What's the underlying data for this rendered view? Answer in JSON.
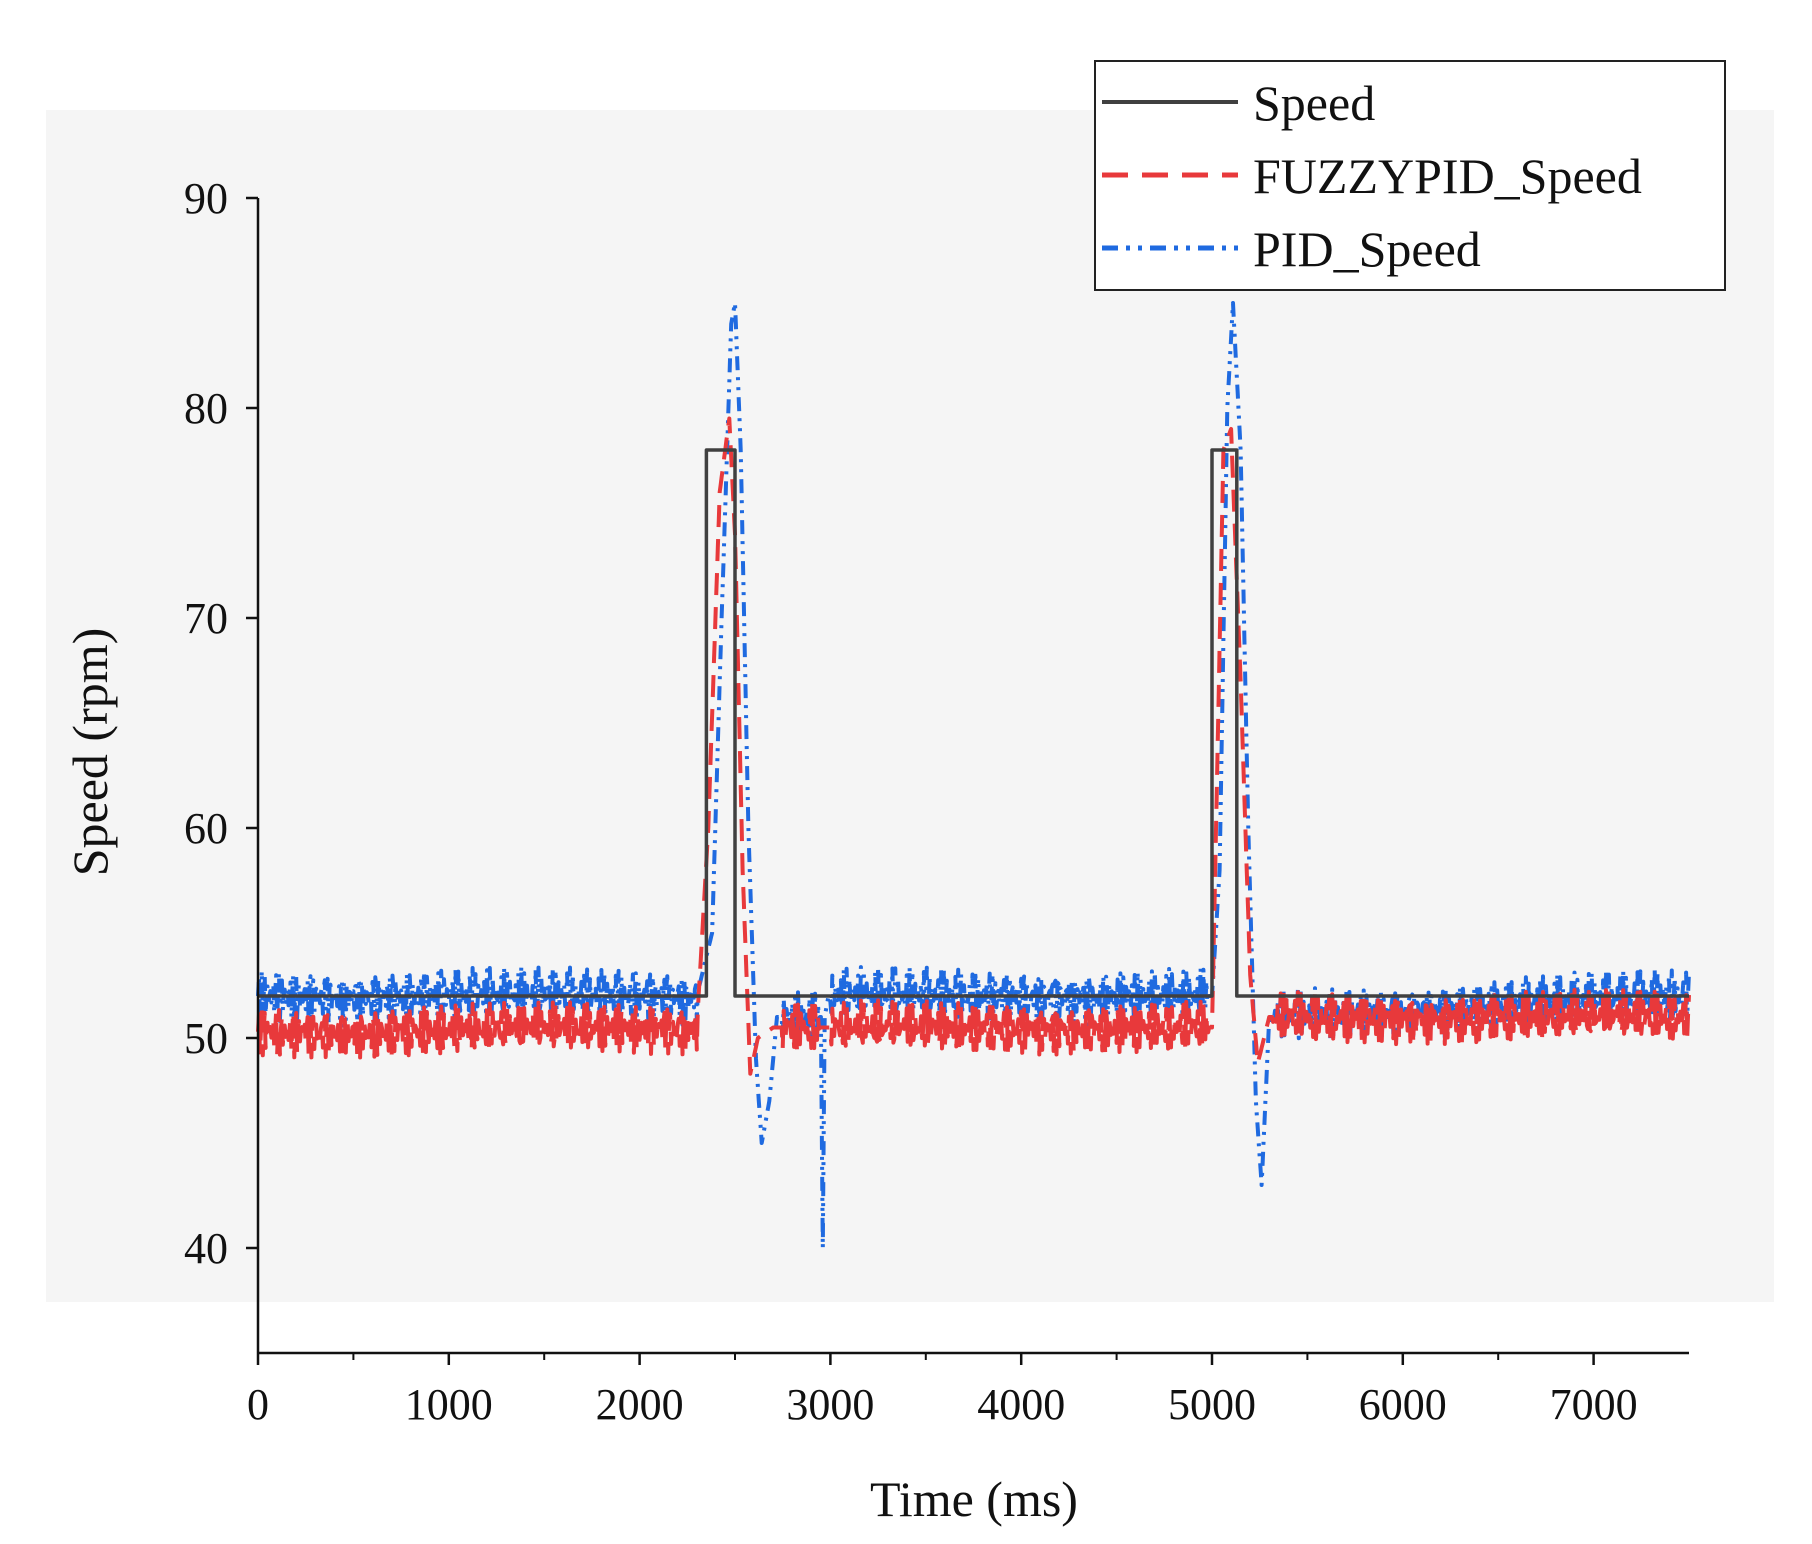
{
  "chart_data": {
    "type": "line",
    "title": "",
    "xlabel": "Time (ms)",
    "ylabel": "Speed (rpm)",
    "xlim": [
      0,
      7500
    ],
    "ylim": [
      35,
      90
    ],
    "xticks": [
      0,
      1000,
      2000,
      3000,
      4000,
      5000,
      6000,
      7000
    ],
    "xtick_labels": [
      "0",
      "1000",
      "2000",
      "3000",
      "4000",
      "5000",
      "6000",
      "7000"
    ],
    "yticks": [
      40,
      50,
      60,
      70,
      80,
      90
    ],
    "ytick_labels": [
      "40",
      "50",
      "60",
      "70",
      "80",
      "90"
    ],
    "legend_position": "top-right",
    "series": [
      {
        "name": "Speed",
        "color": "#404040",
        "style": "solid",
        "x": [
          0,
          2350,
          2350,
          2500,
          2500,
          5000,
          5000,
          5130,
          5130,
          7500
        ],
        "values": [
          52,
          52,
          78,
          78,
          52,
          52,
          78,
          78,
          52,
          52
        ]
      },
      {
        "name": "FUZZYPID_Speed",
        "color": "#e8393b",
        "style": "dashed",
        "x": [
          0,
          2300,
          2360,
          2420,
          2470,
          2500,
          2540,
          2580,
          2620,
          2700,
          5000,
          5030,
          5060,
          5100,
          5150,
          5200,
          5240,
          5300,
          7500
        ],
        "values": [
          50.3,
          50.5,
          60,
          76,
          79.5,
          74,
          58,
          48.3,
          50,
          50.5,
          50.5,
          64,
          78,
          79,
          67,
          53,
          48.8,
          51,
          51
        ]
      },
      {
        "name": "PID_Speed",
        "color": "#1f6ae0",
        "style": "dashdot",
        "x": [
          0,
          2300,
          2380,
          2430,
          2480,
          2500,
          2530,
          2570,
          2610,
          2640,
          2680,
          2720,
          2950,
          2960,
          2970,
          2990,
          5000,
          5040,
          5080,
          5110,
          5150,
          5190,
          5230,
          5260,
          5300,
          7500
        ],
        "values": [
          52,
          52,
          55,
          70,
          84,
          85,
          78,
          60,
          49,
          45,
          47,
          51,
          51,
          40,
          51,
          52,
          52,
          58,
          80,
          85,
          78,
          60,
          47,
          43,
          51,
          52
        ]
      }
    ]
  }
}
